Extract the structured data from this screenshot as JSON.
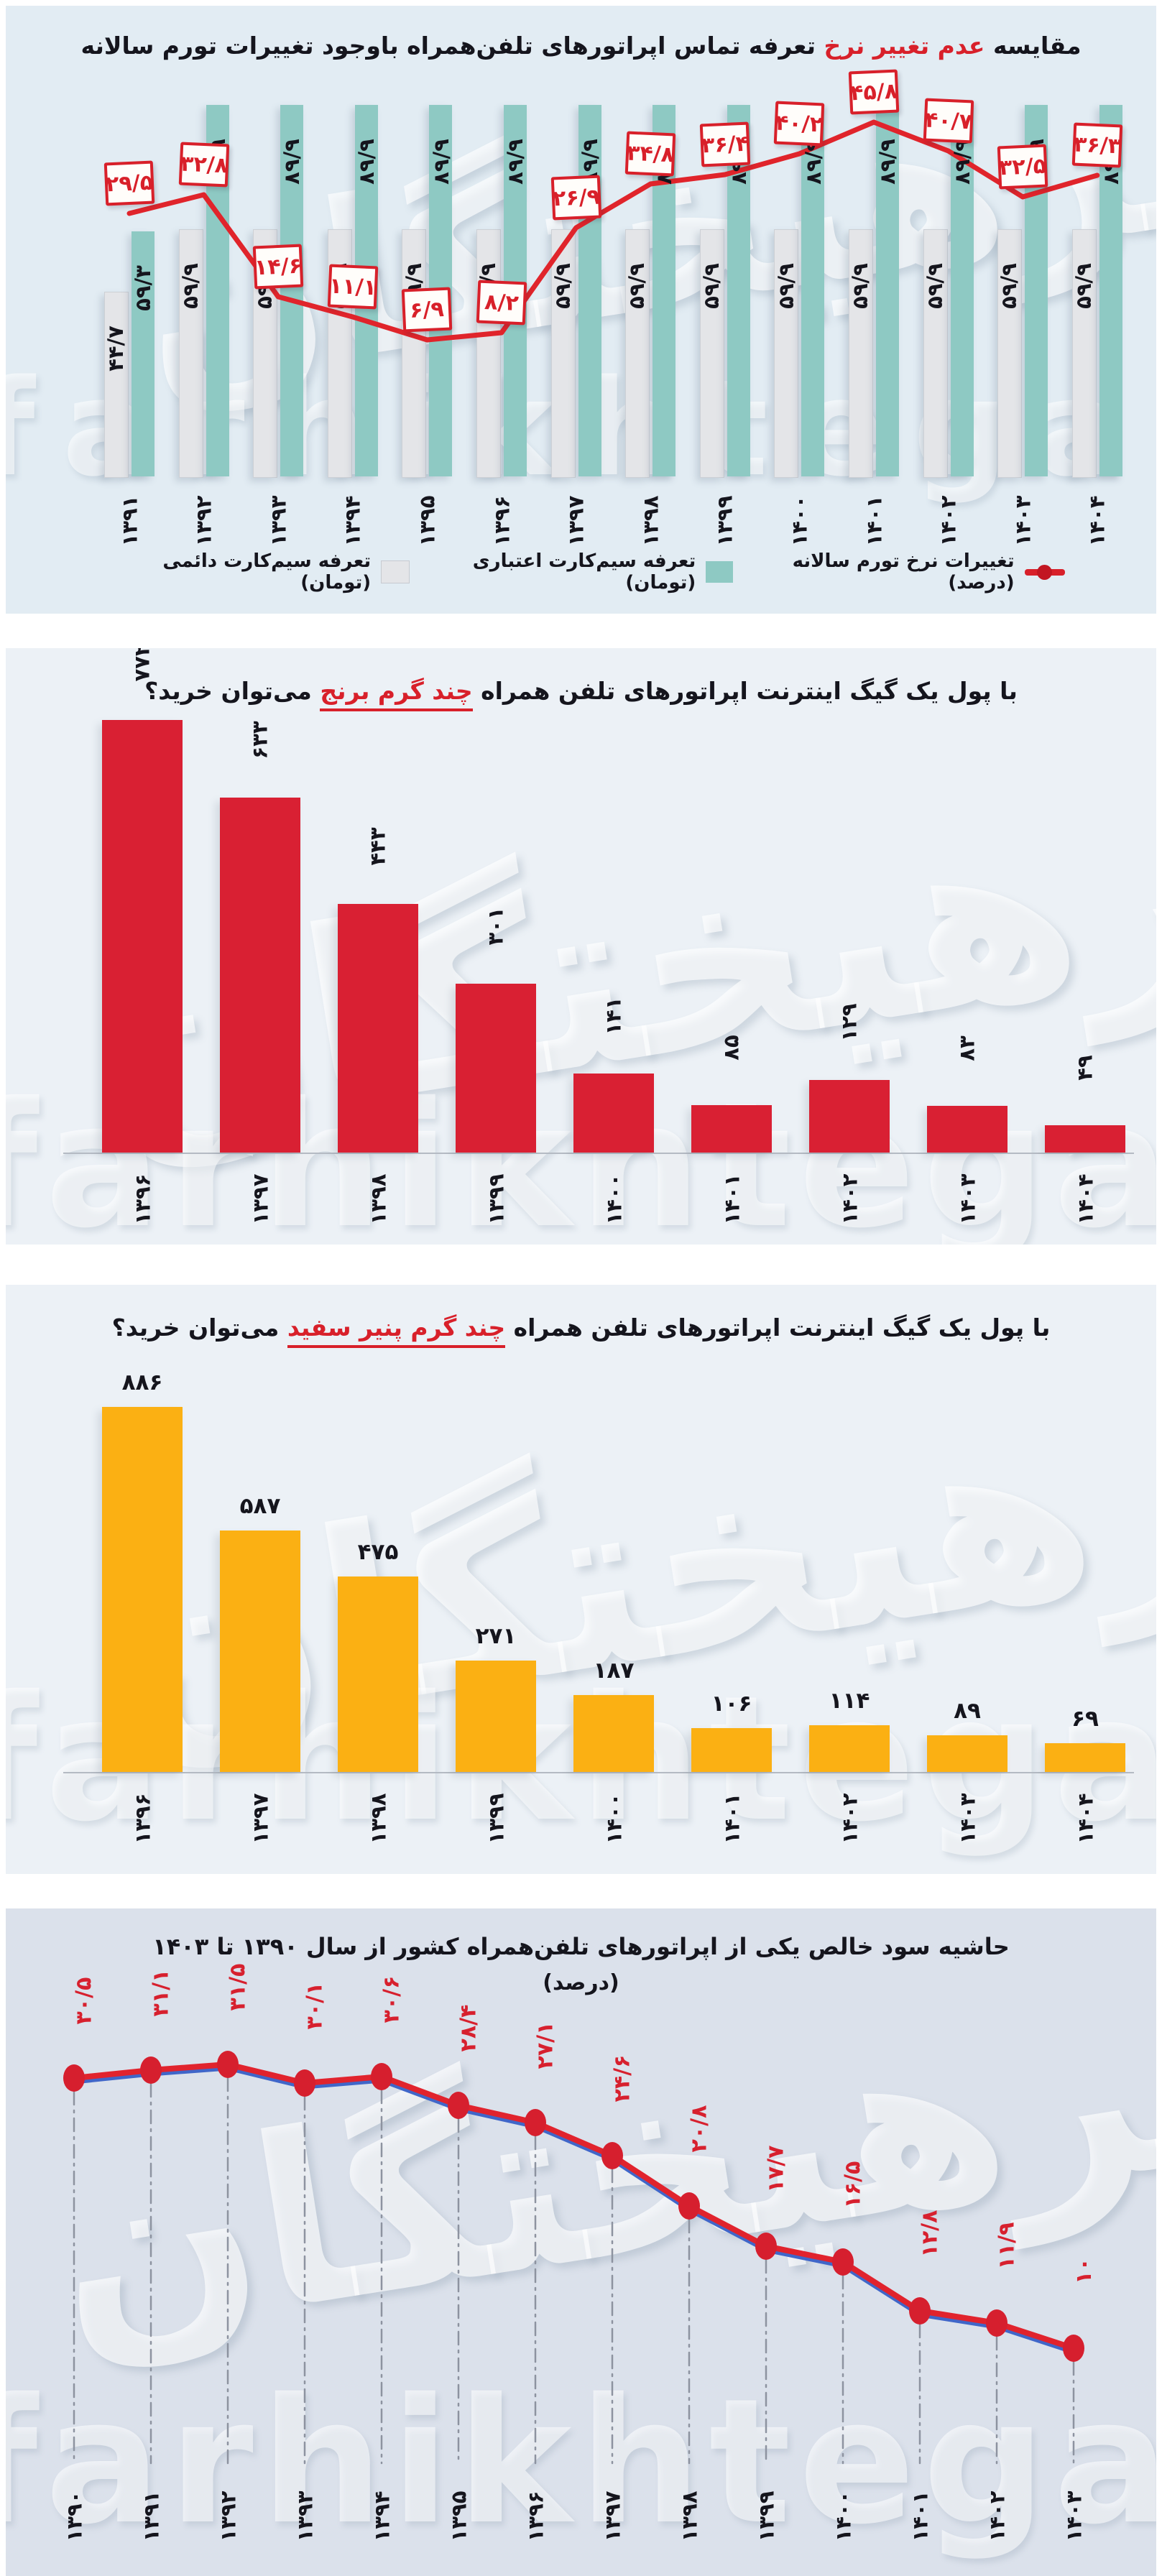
{
  "watermark": {
    "persian": "فرهیختگان",
    "latin": "farhikhtegan"
  },
  "chart_data": [
    {
      "type": "bar",
      "subtype": "grouped-bars-with-line",
      "title_parts": {
        "pre": "مقایسه ",
        "red": "عدم تغییر نرخ",
        "post": " تعرفه تماس اپراتورهای تلفن‌همراه باوجود تغییرات تورم سالانه"
      },
      "categories": [
        "۱۳۹۱",
        "۱۳۹۲",
        "۱۳۹۳",
        "۱۳۹۴",
        "۱۳۹۵",
        "۱۳۹۶",
        "۱۳۹۷",
        "۱۳۹۸",
        "۱۳۹۹",
        "۱۴۰۰",
        "۱۴۰۱",
        "۱۴۰۲",
        "۱۴۰۳",
        "۱۴۰۴"
      ],
      "series": [
        {
          "name": "تعرفه سیم‌کارت دائمی (تومان)",
          "kind": "bar",
          "color": "#e4e5e8",
          "values": [
            44.7,
            59.9,
            59.9,
            59.9,
            59.9,
            59.9,
            59.9,
            59.9,
            59.9,
            59.9,
            59.9,
            59.9,
            59.9,
            59.9
          ],
          "labels": [
            "۴۴/۷",
            "۵۹/۹",
            "۵۹/۹",
            "۵۹/۹",
            "۵۹/۹",
            "۵۹/۹",
            "۵۹/۹",
            "۵۹/۹",
            "۵۹/۹",
            "۵۹/۹",
            "۵۹/۹",
            "۵۹/۹",
            "۵۹/۹",
            "۵۹/۹"
          ]
        },
        {
          "name": "تعرفه سیم‌کارت اعتباری (تومان)",
          "kind": "bar",
          "color": "#8ec9c3",
          "values": [
            59.3,
            89.9,
            89.9,
            89.9,
            89.9,
            89.9,
            89.9,
            89.9,
            89.9,
            89.9,
            89.9,
            89.9,
            89.9,
            89.9
          ],
          "labels": [
            "۵۹/۳",
            "۸۹/۹",
            "۸۹/۹",
            "۸۹/۹",
            "۸۹/۹",
            "۸۹/۹",
            "۸۹/۹",
            "۸۹/۹",
            "۸۹/۹",
            "۸۹/۹",
            "۸۹/۹",
            "۸۹/۹",
            "۸۹/۹",
            "۸۹/۹"
          ]
        },
        {
          "name": "تغییرات نرخ تورم سالانه (درصد)",
          "kind": "line",
          "color": "#e0242b",
          "values": [
            29.5,
            32.8,
            14.6,
            11.1,
            6.9,
            8.2,
            26.9,
            34.8,
            36.4,
            40.2,
            45.8,
            40.7,
            32.5,
            36.3
          ],
          "labels": [
            "۲۹/۵",
            "۳۲/۸",
            "۱۴/۶",
            "۱۱/۱",
            "۶/۹",
            "۸/۲",
            "۲۶/۹",
            "۳۴/۸",
            "۳۶/۴",
            "۴۰/۲",
            "۴۵/۸",
            "۴۰/۷",
            "۳۲/۵",
            "۳۶/۳"
          ]
        }
      ],
      "legend_position": "bottom"
    },
    {
      "type": "bar",
      "title_parts": {
        "pre": "با پول یک گیگ اینترنت اپراتورهای تلفن همراه ",
        "red": "چند گرم برنج",
        "post": " می‌توان خرید؟"
      },
      "categories": [
        "۱۳۹۶",
        "۱۳۹۷",
        "۱۳۹۸",
        "۱۳۹۹",
        "۱۴۰۰",
        "۱۴۰۱",
        "۱۴۰۲",
        "۱۴۰۳",
        "۱۴۰۴"
      ],
      "values": [
        772,
        633,
        443,
        301,
        141,
        85,
        129,
        83,
        49
      ],
      "labels": [
        "۷۷۲",
        "۶۳۳",
        "۴۴۳",
        "۳۰۱",
        "۱۴۱",
        "۸۵",
        "۱۲۹",
        "۸۳",
        "۴۹"
      ],
      "bar_color": "#d92033"
    },
    {
      "type": "bar",
      "title_parts": {
        "pre": "با پول یک گیگ اینترنت اپراتورهای تلفن همراه ",
        "red": "چند گرم پنیر سفید",
        "post": " می‌توان خرید؟"
      },
      "categories": [
        "۱۳۹۶",
        "۱۳۹۷",
        "۱۳۹۸",
        "۱۳۹۹",
        "۱۴۰۰",
        "۱۴۰۱",
        "۱۴۰۲",
        "۱۴۰۳",
        "۱۴۰۴"
      ],
      "values": [
        886,
        587,
        475,
        271,
        187,
        106,
        114,
        89,
        69
      ],
      "labels": [
        "۸۸۶",
        "۵۸۷",
        "۴۷۵",
        "۲۷۱",
        "۱۸۷",
        "۱۰۶",
        "۱۱۴",
        "۸۹",
        "۶۹"
      ],
      "bar_color": "#fbb013"
    },
    {
      "type": "line",
      "title_parts": {
        "line1": "حاشیه سود خالص یکی از اپراتورهای تلفن‌همراه کشور از سال ۱۳۹۰ تا ۱۴۰۳",
        "line2": "(درصد)"
      },
      "categories": [
        "۱۳۹۰",
        "۱۳۹۱",
        "۱۳۹۲",
        "۱۳۹۳",
        "۱۳۹۴",
        "۱۳۹۵",
        "۱۳۹۶",
        "۱۳۹۷",
        "۱۳۹۸",
        "۱۳۹۹",
        "۱۴۰۰",
        "۱۴۰۱",
        "۱۴۰۲",
        "۱۴۰۳"
      ],
      "values": [
        30.5,
        31.1,
        31.5,
        30.1,
        30.6,
        28.4,
        27.1,
        24.6,
        20.8,
        17.7,
        16.5,
        12.8,
        11.9,
        10
      ],
      "labels": [
        "۳۰/۵",
        "۳۱/۱",
        "۳۱/۵",
        "۳۰/۱",
        "۳۰/۶",
        "۲۸/۴",
        "۲۷/۱",
        "۲۴/۶",
        "۲۰/۸",
        "۱۷/۷",
        "۱۶/۵",
        "۱۲/۸",
        "۱۱/۹",
        "۱۰"
      ],
      "line_color": "#e1232d",
      "shadow_line_color": "#4066c9",
      "dot_color": "#d61f2e"
    }
  ]
}
